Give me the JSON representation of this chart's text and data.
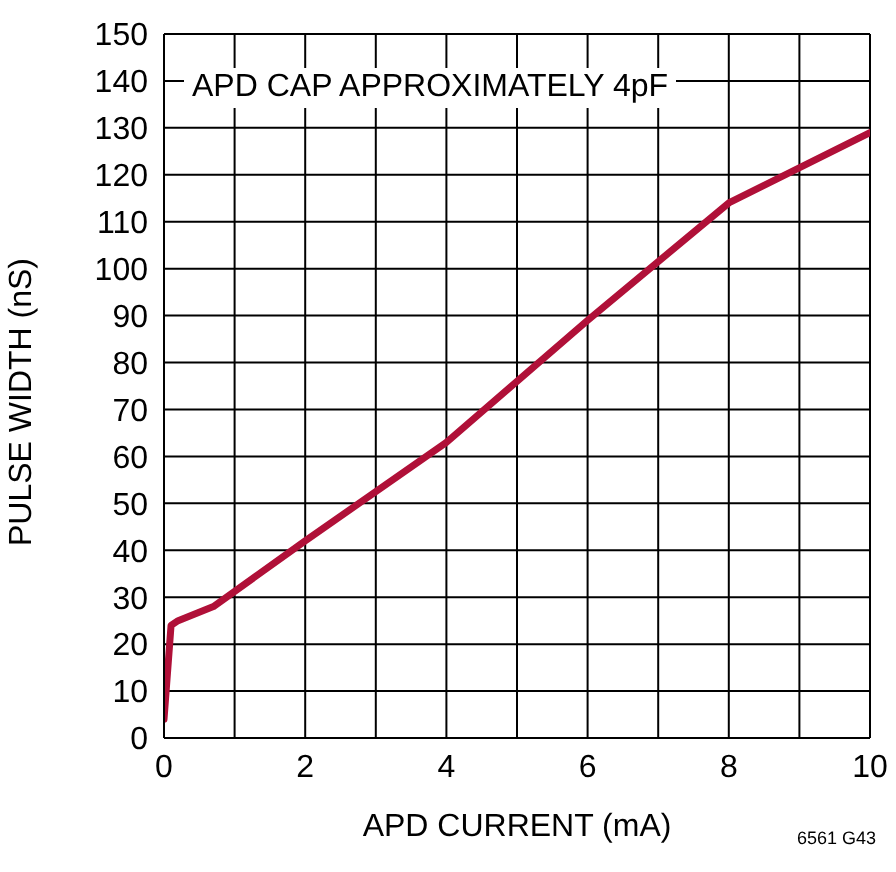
{
  "chart_data": {
    "type": "line",
    "xlabel": "APD CURRENT (mA)",
    "ylabel": "PULSE WIDTH (nS)",
    "annotations": [
      "APD CAP APPROXIMATELY 4pF",
      "6561 G43"
    ],
    "x": [
      0,
      0.1,
      0.2,
      0.7,
      2,
      4,
      6,
      8,
      10
    ],
    "series": [
      {
        "color": "#b01038",
        "values": [
          4,
          24,
          25,
          28,
          42,
          63,
          89,
          114,
          129
        ]
      }
    ],
    "xlim": [
      0,
      10
    ],
    "xticks": [
      0,
      {
        "value": 1,
        "label": null
      },
      2,
      {
        "value": 3,
        "label": null
      },
      4,
      {
        "value": 5,
        "label": null
      },
      6,
      {
        "value": 7,
        "label": null
      },
      8,
      {
        "value": 9,
        "label": null
      },
      10
    ],
    "ylim": [
      0,
      150
    ],
    "yticks": [
      0,
      10,
      20,
      30,
      40,
      50,
      60,
      70,
      80,
      90,
      100,
      110,
      120,
      130,
      140,
      150
    ],
    "grid": true,
    "legend": false,
    "marker": "none",
    "line_style": "solid"
  }
}
